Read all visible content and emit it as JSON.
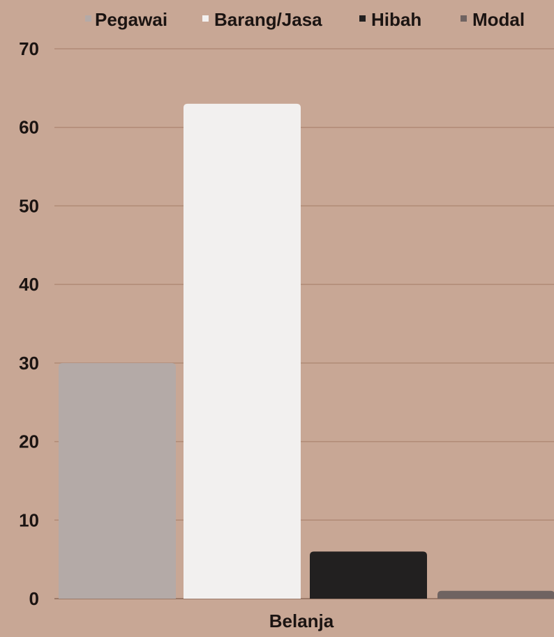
{
  "chart_data": {
    "type": "bar",
    "categories": [
      "Belanja"
    ],
    "series": [
      {
        "name": "Pegawai",
        "values": [
          30
        ],
        "color": "#b4aaa7"
      },
      {
        "name": "Barang/Jasa",
        "values": [
          63
        ],
        "color": "#f2f0ef"
      },
      {
        "name": "Hibah",
        "values": [
          6
        ],
        "color": "#222020"
      },
      {
        "name": "Modal",
        "values": [
          1
        ],
        "color": "#6f6361"
      }
    ],
    "yticks": [
      "0",
      "10",
      "20",
      "30",
      "40",
      "50",
      "60",
      "70"
    ],
    "ylim": [
      0,
      70
    ],
    "grid": true,
    "legend": "top",
    "background": "#c8a795",
    "title": "",
    "xlabel": "",
    "ylabel": ""
  }
}
